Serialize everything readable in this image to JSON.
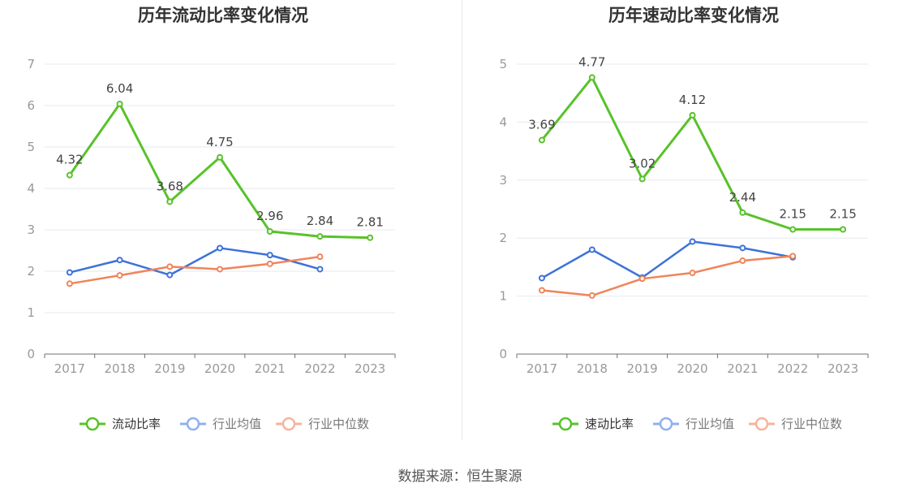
{
  "source_label": "数据来源：恒生聚源",
  "colors": {
    "primary": "#58c22a",
    "industry_avg": "#3d72d9",
    "industry_median": "#f0845a",
    "legend_avg": "#8fb0ee",
    "legend_median": "#f7b39c",
    "axis": "#999999",
    "grid": "#e6e9f0",
    "title": "#333333"
  },
  "chart_data": [
    {
      "type": "line",
      "title": "历年流动比率变化情况",
      "x": [
        "2017",
        "2018",
        "2019",
        "2020",
        "2021",
        "2022",
        "2023"
      ],
      "ylim": [
        0,
        7
      ],
      "yticks": [
        "0",
        "1",
        "2",
        "3",
        "4",
        "5",
        "6",
        "7"
      ],
      "grid": true,
      "legend_position": "bottom",
      "series": [
        {
          "name": "流动比率",
          "values": [
            4.32,
            6.04,
            3.68,
            4.75,
            2.96,
            2.84,
            2.81
          ],
          "labels": [
            "4.32",
            "6.04",
            "3.68",
            "4.75",
            "2.96",
            "2.84",
            "2.81"
          ]
        },
        {
          "name": "行业均值",
          "values": [
            1.97,
            2.27,
            1.91,
            2.56,
            2.39,
            2.05,
            null
          ]
        },
        {
          "name": "行业中位数",
          "values": [
            1.7,
            1.9,
            2.11,
            2.05,
            2.18,
            2.35,
            null
          ]
        }
      ]
    },
    {
      "type": "line",
      "title": "历年速动比率变化情况",
      "x": [
        "2017",
        "2018",
        "2019",
        "2020",
        "2021",
        "2022",
        "2023"
      ],
      "ylim": [
        0,
        5
      ],
      "yticks": [
        "0",
        "1",
        "2",
        "3",
        "4",
        "5"
      ],
      "grid": true,
      "legend_position": "bottom",
      "series": [
        {
          "name": "速动比率",
          "values": [
            3.69,
            4.77,
            3.02,
            4.12,
            2.44,
            2.15,
            2.15
          ],
          "labels": [
            "3.69",
            "4.77",
            "3.02",
            "4.12",
            "2.44",
            "2.15",
            "2.15"
          ]
        },
        {
          "name": "行业均值",
          "values": [
            1.31,
            1.8,
            1.32,
            1.94,
            1.83,
            1.67,
            null
          ]
        },
        {
          "name": "行业中位数",
          "values": [
            1.1,
            1.01,
            1.3,
            1.4,
            1.61,
            1.69,
            null
          ]
        }
      ]
    }
  ]
}
